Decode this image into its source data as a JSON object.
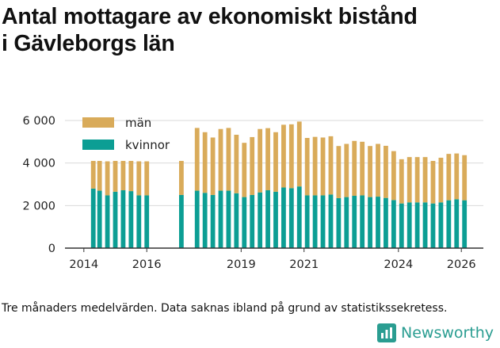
{
  "title_line1": "Antal mottagare av ekonomiskt bistånd",
  "title_line2": "i Gävleborgs län",
  "caption": "Tre månaders medelvärden. Data saknas ibland på grund av statistikssekretess.",
  "brand": {
    "name": "Newsworthy",
    "icon": "newsworthy-logo-icon"
  },
  "colors": {
    "men": "#d9ab5a",
    "women": "#0c9e94",
    "grid": "#d9d9d9",
    "axis": "#333333"
  },
  "chart_data": {
    "type": "bar",
    "stacked": true,
    "title": "Antal mottagare av ekonomiskt bistånd i Gävleborgs län",
    "xlabel": "",
    "ylabel": "",
    "ylim": [
      0,
      6000
    ],
    "yticks": [
      0,
      2000,
      4000,
      6000
    ],
    "ytick_labels": [
      "0",
      "2 000",
      "4 000",
      "6 000"
    ],
    "xlim": [
      2013.4,
      2026.7
    ],
    "xticks": [
      2014,
      2016,
      2019,
      2021,
      2024,
      2026
    ],
    "xtick_labels": [
      "2014",
      "2016",
      "2019",
      "2021",
      "2024",
      "2026"
    ],
    "legend_position": "top-left",
    "x": [
      2014.3,
      2014.5,
      2014.75,
      2015.0,
      2015.25,
      2015.5,
      2015.75,
      2016.0,
      2017.1,
      2017.6,
      2017.85,
      2018.1,
      2018.35,
      2018.6,
      2018.85,
      2019.1,
      2019.35,
      2019.6,
      2019.85,
      2020.1,
      2020.35,
      2020.6,
      2020.85,
      2021.1,
      2021.35,
      2021.6,
      2021.85,
      2022.1,
      2022.35,
      2022.6,
      2022.85,
      2023.1,
      2023.35,
      2023.6,
      2023.85,
      2024.1,
      2024.35,
      2024.6,
      2024.85,
      2025.1,
      2025.35,
      2025.6,
      2025.85,
      2026.1
    ],
    "series": [
      {
        "name": "kvinnor",
        "values": [
          2800,
          2700,
          2480,
          2650,
          2720,
          2680,
          2480,
          2480,
          2500,
          2700,
          2600,
          2500,
          2700,
          2700,
          2580,
          2400,
          2500,
          2620,
          2720,
          2650,
          2850,
          2820,
          2900,
          2480,
          2480,
          2480,
          2520,
          2350,
          2400,
          2460,
          2480,
          2400,
          2420,
          2360,
          2260,
          2100,
          2150,
          2150,
          2150,
          2100,
          2150,
          2250,
          2300,
          2250
        ]
      },
      {
        "name": "män",
        "values": [
          1300,
          1400,
          1600,
          1450,
          1380,
          1420,
          1600,
          1600,
          1600,
          2950,
          2850,
          2700,
          2900,
          2950,
          2750,
          2550,
          2720,
          2980,
          2920,
          2800,
          2950,
          3000,
          3050,
          2700,
          2750,
          2720,
          2740,
          2450,
          2500,
          2580,
          2520,
          2400,
          2480,
          2450,
          2300,
          2080,
          2130,
          2130,
          2130,
          2000,
          2100,
          2180,
          2150,
          2120
        ]
      }
    ]
  }
}
